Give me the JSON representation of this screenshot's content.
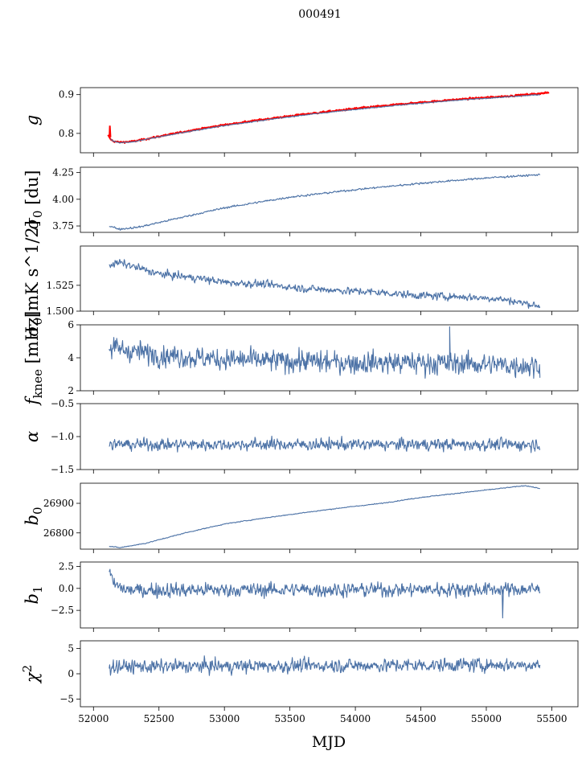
{
  "figure": {
    "title": "000491",
    "xlabel": "MJD",
    "series_color": "#4c72a6",
    "overlay_color": "#ff0000"
  },
  "chart_data": {
    "type": "line",
    "title": "000491",
    "xlabel": "MJD",
    "xlim": [
      51900,
      55700
    ],
    "xticks": [
      52000,
      52500,
      53000,
      53500,
      54000,
      54500,
      55000,
      55500
    ],
    "x_start": 52120,
    "x_end": 55410,
    "panels": [
      {
        "key": "g",
        "ylabel_main": "g",
        "ylabel_sub": "",
        "ylabel_sup": "",
        "ylabel_tail": "",
        "ylim": [
          0.75,
          0.918
        ],
        "yticks": [
          0.8,
          0.9
        ],
        "ytick_labels": [
          "0.8",
          "0.9"
        ],
        "series": [
          {
            "name": "g (fit)",
            "color": "#ff0000",
            "x": [
              52110,
              52130,
              52150,
              52200,
              52300,
              52500,
              52750,
              53000,
              53300,
              53600,
              54000,
              54400,
              54800,
              55200,
              55480
            ],
            "y": [
              0.795,
              0.785,
              0.78,
              0.777,
              0.779,
              0.792,
              0.808,
              0.822,
              0.836,
              0.849,
              0.864,
              0.877,
              0.888,
              0.897,
              0.905
            ],
            "noise": 0.0015
          },
          {
            "name": "g",
            "color": "#4c72a6",
            "x": [
              52130,
              52150,
              52200,
              52300,
              52500,
              52750,
              53000,
              53300,
              53600,
              54000,
              54400,
              54800,
              55200,
              55410
            ],
            "y": [
              0.786,
              0.78,
              0.776,
              0.778,
              0.791,
              0.806,
              0.82,
              0.834,
              0.847,
              0.862,
              0.875,
              0.886,
              0.895,
              0.9
            ],
            "noise": 0.0008
          }
        ]
      },
      {
        "key": "sigma0",
        "ylabel_main": "σ",
        "ylabel_sub": "0",
        "ylabel_sup": "",
        "ylabel_tail": " [du]",
        "ylim": [
          3.69,
          4.3
        ],
        "yticks": [
          3.75,
          4.0,
          4.25
        ],
        "ytick_labels": [
          "3.75",
          "4.00",
          "4.25"
        ],
        "series": [
          {
            "name": "sigma0",
            "color": "#4c72a6",
            "x": [
              52120,
              52200,
              52350,
              52600,
              53000,
              53500,
              54000,
              54500,
              55000,
              55410
            ],
            "y": [
              3.75,
              3.72,
              3.74,
              3.81,
              3.92,
              4.02,
              4.09,
              4.15,
              4.2,
              4.23
            ],
            "noise": 0.006
          }
        ]
      },
      {
        "key": "sigma0_mk",
        "ylabel_main": "σ",
        "ylabel_sub": "0",
        "ylabel_sup": "",
        "ylabel_tail": "[mK s^1/2]",
        "ylim": [
          1.5,
          1.563
        ],
        "yticks": [
          1.5,
          1.525
        ],
        "ytick_labels": [
          "1.500",
          "1.525"
        ],
        "series": [
          {
            "name": "sigma0 (mK)",
            "color": "#4c72a6",
            "x": [
              52120,
              52200,
              52500,
              52800,
              53000,
              53300,
              53600,
              53900,
              54200,
              54500,
              54800,
              55100,
              55410
            ],
            "y": [
              1.545,
              1.547,
              1.536,
              1.532,
              1.528,
              1.526,
              1.522,
              1.52,
              1.518,
              1.515,
              1.514,
              1.512,
              1.505
            ],
            "noise": 0.0025
          }
        ]
      },
      {
        "key": "fknee",
        "ylabel_main": "f",
        "ylabel_sub": "knee",
        "ylabel_sup": "",
        "ylabel_tail": " [mHz]",
        "ylim": [
          2,
          6
        ],
        "yticks": [
          2,
          4,
          6
        ],
        "ytick_labels": [
          "2",
          "4",
          "6"
        ],
        "series": [
          {
            "name": "fknee",
            "color": "#4c72a6",
            "x": [
              52120,
              52500,
              53000,
              53500,
              54000,
              54500,
              55000,
              55410
            ],
            "y": [
              4.6,
              4.2,
              3.9,
              3.8,
              3.7,
              3.7,
              3.6,
              3.5
            ],
            "noise": 0.45
          }
        ]
      },
      {
        "key": "alpha",
        "ylabel_main": "α",
        "ylabel_sub": "",
        "ylabel_sup": "",
        "ylabel_tail": "",
        "ylim": [
          -1.5,
          -0.5
        ],
        "yticks": [
          -1.5,
          -1.0,
          -0.5
        ],
        "ytick_labels": [
          "−1.5",
          "−1.0",
          "−0.5"
        ],
        "series": [
          {
            "name": "alpha",
            "color": "#4c72a6",
            "x": [
              52120,
              55410
            ],
            "y": [
              -1.12,
              -1.12
            ],
            "noise": 0.06
          }
        ]
      },
      {
        "key": "b0",
        "ylabel_main": "b",
        "ylabel_sub": "0",
        "ylabel_sup": "",
        "ylabel_tail": "",
        "ylim": [
          26745,
          26968
        ],
        "yticks": [
          26800,
          26900
        ],
        "ytick_labels": [
          "26800",
          "26900"
        ],
        "series": [
          {
            "name": "b0",
            "color": "#4c72a6",
            "x": [
              52120,
              52200,
              52400,
              52700,
              53000,
              53300,
              53600,
              53900,
              54200,
              54500,
              54800,
              55100,
              55300,
              55410
            ],
            "y": [
              26755,
              26750,
              26765,
              26800,
              26830,
              26850,
              26868,
              26885,
              26900,
              26920,
              26935,
              26950,
              26960,
              26950
            ],
            "noise": 1.0
          }
        ]
      },
      {
        "key": "b1",
        "ylabel_main": "b",
        "ylabel_sub": "1",
        "ylabel_sup": "",
        "ylabel_tail": "",
        "ylim": [
          -4.5,
          3.0
        ],
        "yticks": [
          -2.5,
          0.0,
          2.5
        ],
        "ytick_labels": [
          "−2.5",
          "0.0",
          "2.5"
        ],
        "series": [
          {
            "name": "b1",
            "color": "#4c72a6",
            "x": [
              52120,
              52150,
              52250,
              55410
            ],
            "y": [
              2.0,
              0.5,
              -0.2,
              -0.1
            ],
            "noise": 0.55
          }
        ]
      },
      {
        "key": "chi2",
        "ylabel_main": "χ",
        "ylabel_sub": "",
        "ylabel_sup": "2",
        "ylabel_tail": "",
        "ylim": [
          -6.5,
          6.5
        ],
        "yticks": [
          -5,
          0,
          5
        ],
        "ytick_labels": [
          "−5",
          "0",
          "5"
        ],
        "series": [
          {
            "name": "chi2",
            "color": "#4c72a6",
            "x": [
              52120,
              55410
            ],
            "y": [
              1.4,
              1.8
            ],
            "noise": 0.9
          }
        ]
      }
    ]
  }
}
